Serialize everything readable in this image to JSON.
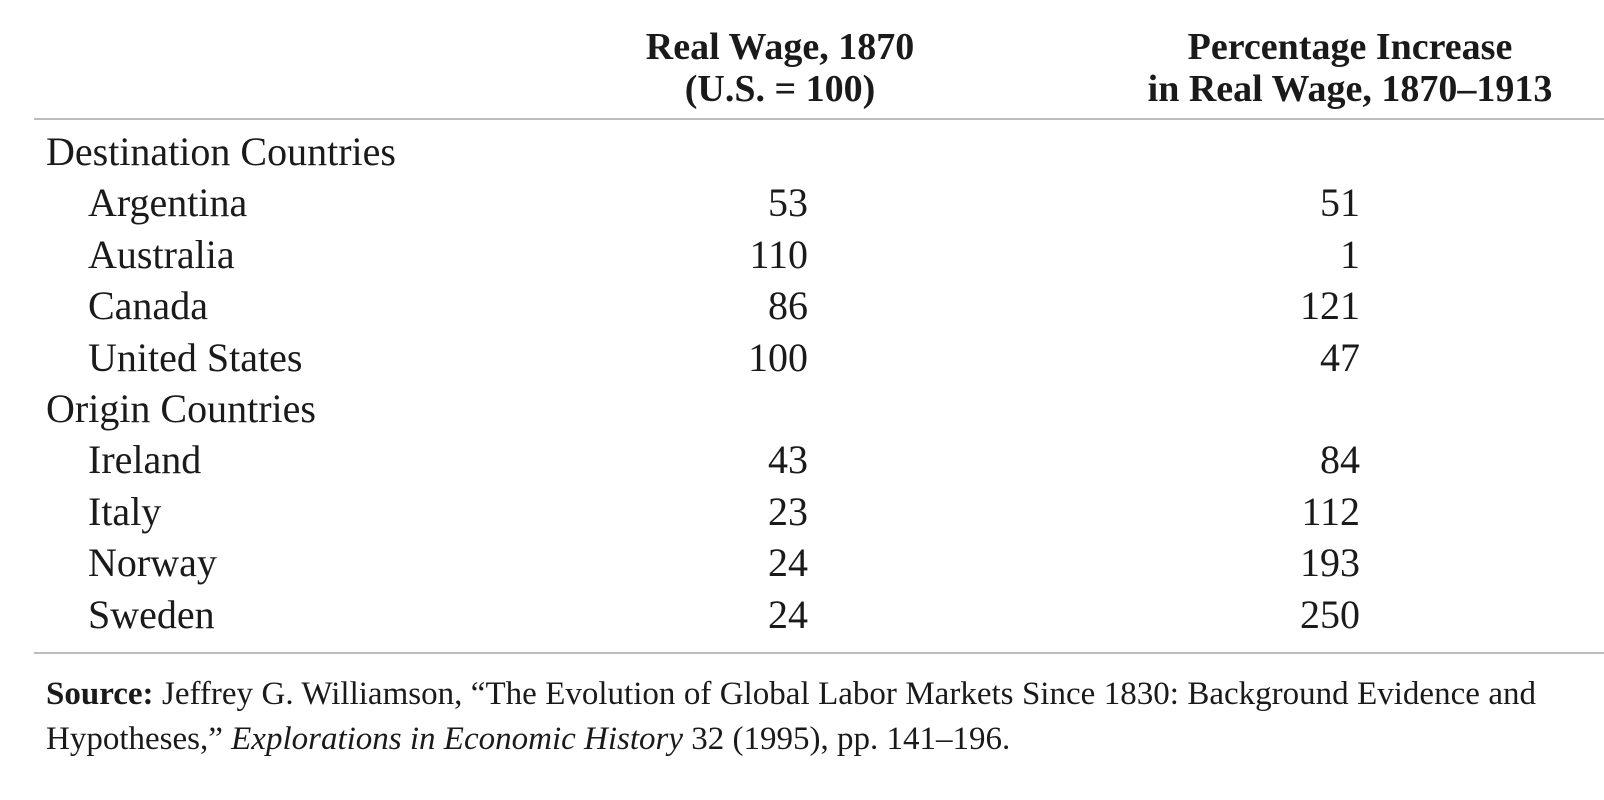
{
  "header": {
    "col1_line1": "Real Wage, 1870",
    "col1_line2": "(U.S. = 100)",
    "col2_line1": "Percentage Increase",
    "col2_line2": "in Real Wage, 1870–1913"
  },
  "groups": [
    {
      "label": "Destination Countries",
      "rows": [
        {
          "country": "Argentina",
          "wage_1870": "53",
          "pct_increase": "51"
        },
        {
          "country": "Australia",
          "wage_1870": "110",
          "pct_increase": "1"
        },
        {
          "country": "Canada",
          "wage_1870": "86",
          "pct_increase": "121"
        },
        {
          "country": "United States",
          "wage_1870": "100",
          "pct_increase": "47"
        }
      ]
    },
    {
      "label": "Origin Countries",
      "rows": [
        {
          "country": "Ireland",
          "wage_1870": "43",
          "pct_increase": "84"
        },
        {
          "country": "Italy",
          "wage_1870": "23",
          "pct_increase": "112"
        },
        {
          "country": "Norway",
          "wage_1870": "24",
          "pct_increase": "193"
        },
        {
          "country": "Sweden",
          "wage_1870": "24",
          "pct_increase": "250"
        }
      ]
    }
  ],
  "source": {
    "label": "Source:",
    "text_before": " Jeffrey G. Williamson, “The Evolution of Global Labor Markets Since 1830: Background Evidence and Hypotheses,” ",
    "journal": "Explorations in Economic History",
    "text_after": " 32 (1995), pp. 141–196."
  }
}
